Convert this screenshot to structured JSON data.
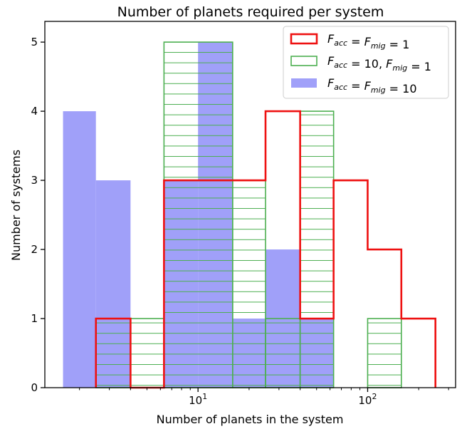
{
  "chart_data": {
    "type": "histogram",
    "title": "Number of planets required per system",
    "xlabel": "Number of planets in the system",
    "ylabel": "Number of systems",
    "x_scale": "log",
    "xlim": [
      1.25,
      330
    ],
    "ylim": [
      0,
      5.3
    ],
    "y_ticks": [
      0,
      1,
      2,
      3,
      4,
      5
    ],
    "x_ticks": [
      {
        "value": 10,
        "base": "10",
        "exp": "1"
      },
      {
        "value": 100,
        "base": "10",
        "exp": "2"
      }
    ],
    "legend_position": "top-right",
    "series": [
      {
        "name": "F_acc = F_mig = 1",
        "legend_parts": [
          [
            "F",
            "acc"
          ],
          " = ",
          [
            "F",
            "mig"
          ],
          " = 1"
        ],
        "style": "step",
        "color": "#ee1111",
        "bins": [
          {
            "x0": 2.5,
            "x1": 4.0,
            "count": 1
          },
          {
            "x0": 4.0,
            "x1": 6.3,
            "count": 0
          },
          {
            "x0": 6.3,
            "x1": 25,
            "count": 3
          },
          {
            "x0": 25,
            "x1": 40,
            "count": 4
          },
          {
            "x0": 40,
            "x1": 63,
            "count": 1
          },
          {
            "x0": 63,
            "x1": 100,
            "count": 3
          },
          {
            "x0": 100,
            "x1": 158,
            "count": 2
          },
          {
            "x0": 158,
            "x1": 251,
            "count": 1
          }
        ]
      },
      {
        "name": "F_acc = 10, F_mig = 1",
        "legend_parts": [
          [
            "F",
            "acc"
          ],
          " = 10, ",
          [
            "F",
            "mig"
          ],
          " = 1"
        ],
        "style": "hatched",
        "color": "#4caf50",
        "bins": [
          {
            "x0": 2.5,
            "x1": 4.0,
            "count": 1
          },
          {
            "x0": 4.0,
            "x1": 6.3,
            "count": 1
          },
          {
            "x0": 6.3,
            "x1": 16,
            "count": 5
          },
          {
            "x0": 16,
            "x1": 25,
            "count": 3
          },
          {
            "x0": 25,
            "x1": 40,
            "count": 1
          },
          {
            "x0": 40,
            "x1": 63,
            "count": 4
          },
          {
            "x0": 100,
            "x1": 158,
            "count": 1
          }
        ]
      },
      {
        "name": "F_acc = F_mig = 10",
        "legend_parts": [
          [
            "F",
            "acc"
          ],
          " = ",
          [
            "F",
            "mig"
          ],
          " = 10"
        ],
        "style": "filled",
        "color": "#8f8ff8",
        "bins": [
          {
            "x0": 1.6,
            "x1": 2.5,
            "count": 4
          },
          {
            "x0": 2.5,
            "x1": 4.0,
            "count": 3
          },
          {
            "x0": 6.3,
            "x1": 10,
            "count": 3
          },
          {
            "x0": 10,
            "x1": 16,
            "count": 5
          },
          {
            "x0": 16,
            "x1": 25,
            "count": 1
          },
          {
            "x0": 25,
            "x1": 40,
            "count": 2
          },
          {
            "x0": 40,
            "x1": 63,
            "count": 1
          }
        ]
      }
    ]
  }
}
